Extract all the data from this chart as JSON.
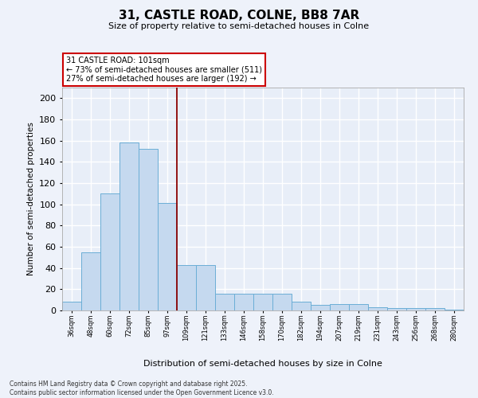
{
  "title_line1": "31, CASTLE ROAD, COLNE, BB8 7AR",
  "title_line2": "Size of property relative to semi-detached houses in Colne",
  "xlabel": "Distribution of semi-detached houses by size in Colne",
  "ylabel": "Number of semi-detached properties",
  "categories": [
    "36sqm",
    "48sqm",
    "60sqm",
    "72sqm",
    "85sqm",
    "97sqm",
    "109sqm",
    "121sqm",
    "133sqm",
    "146sqm",
    "158sqm",
    "170sqm",
    "182sqm",
    "194sqm",
    "207sqm",
    "219sqm",
    "231sqm",
    "243sqm",
    "256sqm",
    "268sqm",
    "280sqm"
  ],
  "values": [
    8,
    55,
    110,
    158,
    152,
    101,
    43,
    43,
    16,
    16,
    16,
    16,
    8,
    5,
    6,
    6,
    3,
    2,
    2,
    2,
    1
  ],
  "bar_color": "#c5d9ef",
  "bar_edge_color": "#6baed6",
  "vline_index": 5,
  "vline_color": "#8b0000",
  "annotation_line1": "31 CASTLE ROAD: 101sqm",
  "annotation_line2": "← 73% of semi-detached houses are smaller (511)",
  "annotation_line3": "27% of semi-detached houses are larger (192) →",
  "annotation_box_edgecolor": "#cc0000",
  "ylim": [
    0,
    210
  ],
  "yticks": [
    0,
    20,
    40,
    60,
    80,
    100,
    120,
    140,
    160,
    180,
    200
  ],
  "plot_bg_color": "#e8eef8",
  "fig_bg_color": "#eef2fa",
  "grid_color": "#ffffff",
  "footer_line1": "Contains HM Land Registry data © Crown copyright and database right 2025.",
  "footer_line2": "Contains public sector information licensed under the Open Government Licence v3.0."
}
